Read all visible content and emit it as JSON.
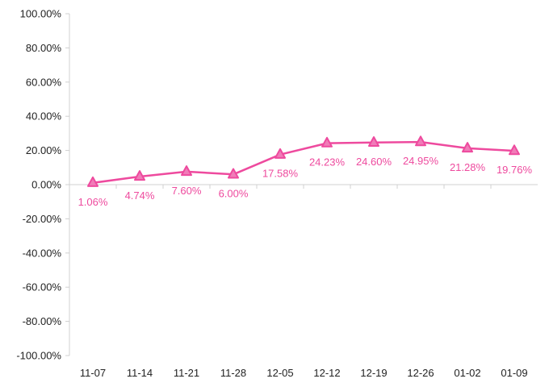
{
  "colors": {
    "series": "#EE4A9E",
    "marker_fill": "#F07CB8",
    "axis": "#D0D0D0",
    "tick_text": "#222222"
  },
  "chart_data": {
    "type": "line",
    "title": "",
    "xlabel": "",
    "ylabel": "",
    "categories": [
      "11-07",
      "11-14",
      "11-21",
      "11-28",
      "12-05",
      "12-12",
      "12-19",
      "12-26",
      "01-02",
      "01-09"
    ],
    "series": [
      {
        "values": [
          1.06,
          4.74,
          7.6,
          6.0,
          17.58,
          24.23,
          24.6,
          24.95,
          21.28,
          19.76
        ],
        "labels": [
          "1.06%",
          "4.74%",
          "7.60%",
          "6.00%",
          "17.58%",
          "24.23%",
          "24.60%",
          "24.95%",
          "21.28%",
          "19.76%"
        ],
        "marker": "triangle"
      }
    ],
    "ylim": [
      -100,
      100
    ],
    "yticks": [
      100,
      80,
      60,
      40,
      20,
      0,
      -20,
      -40,
      -60,
      -80,
      -100
    ],
    "ytick_labels": [
      "100.00%",
      "80.00%",
      "60.00%",
      "40.00%",
      "20.00%",
      "0.00%",
      "-20.00%",
      "-40.00%",
      "-60.00%",
      "-80.00%",
      "-100.00%"
    ],
    "grid": false,
    "legend": "none"
  }
}
